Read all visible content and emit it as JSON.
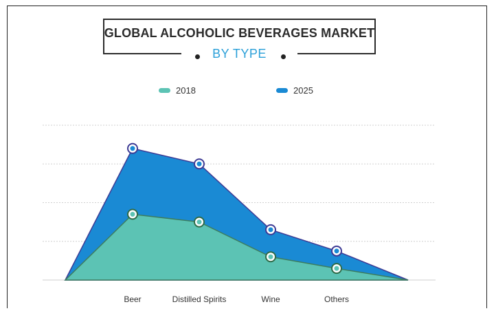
{
  "chart_data": {
    "type": "area",
    "title": "GLOBAL ALCOHOLIC BEVERAGES MARKET",
    "subtitle": "BY TYPE",
    "categories": [
      "Beer",
      "Distilled Spirits",
      "Wine",
      "Others"
    ],
    "x_start_end_zero": true,
    "series": [
      {
        "name": "2018",
        "color": "#5cc3b4",
        "values": [
          1.7,
          1.5,
          0.6,
          0.3
        ]
      },
      {
        "name": "2025",
        "color": "#1a8ad4",
        "values": [
          3.4,
          3.0,
          1.3,
          0.75
        ]
      }
    ],
    "ylim": [
      0,
      4
    ],
    "grid": true,
    "legend_position": "top"
  }
}
